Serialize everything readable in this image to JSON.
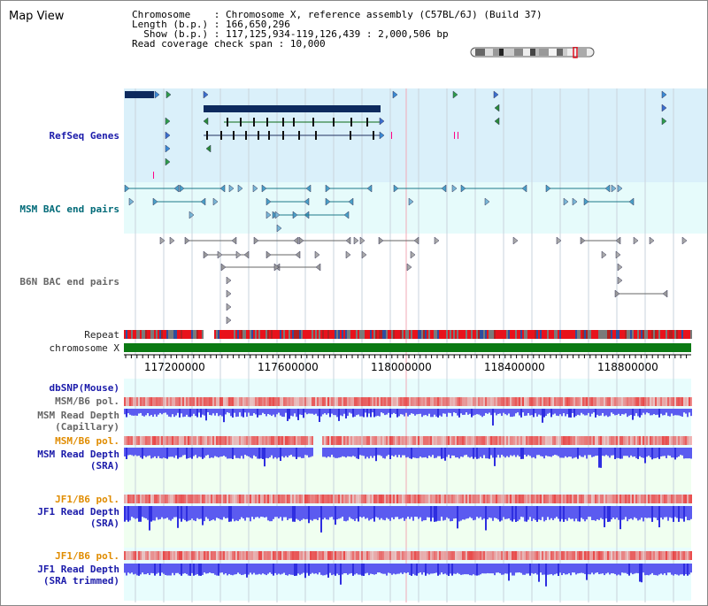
{
  "view": {
    "title": "Map View",
    "info": {
      "chromosome_label": "Chromosome",
      "chromosome_value": "Chromosome X, reference assembly (C57BL/6J) (Build 37)",
      "length_label": "Length (b.p.)",
      "length_value": "166,650,296",
      "show_label": "Show (b.p.)",
      "show_value": "117,125,934-119,126,439 : 2,000,506 bp",
      "coverage_label": "Read coverage check span",
      "coverage_value": "10,000"
    }
  },
  "tracks": {
    "refseq": "RefSeq Genes",
    "msm_bac": "MSM BAC end pairs",
    "b6n_bac": "B6N BAC end pairs",
    "repeat": "Repeat",
    "chromosome": "chromosome X",
    "dbsnp": "dbSNP(Mouse)",
    "msm_pol_1": "MSM/B6 pol.",
    "msm_depth_cap_1": "MSM Read Depth",
    "msm_depth_cap_2": "(Capillary)",
    "msm_pol_2": "MSM/B6 pol.",
    "msm_depth_sra_1": "MSM Read Depth",
    "msm_depth_sra_2": "(SRA)",
    "jf1_pol_1": "JF1/B6 pol.",
    "jf1_depth_1": "JF1 Read Depth",
    "jf1_depth_2": "(SRA)",
    "jf1_pol_2": "JF1/B6 pol.",
    "jf1_trim_1": "JF1 Read Depth",
    "jf1_trim_2": "(SRA trimmed)"
  },
  "axis": {
    "ticks": [
      "117200000",
      "117600000",
      "118000000",
      "118400000",
      "118800000"
    ]
  },
  "colors": {
    "refseq_bg": "#daf0fa",
    "msm_bg": "#e6fbfb",
    "depth_bg": "#e8fdfd",
    "sra_bg": "#f0fff0",
    "gene_dark": "#0d2a5e",
    "repeat_red": "#e8121b",
    "chrom_green": "#0b7a13",
    "depth_blue": "#5b5bf0"
  }
}
